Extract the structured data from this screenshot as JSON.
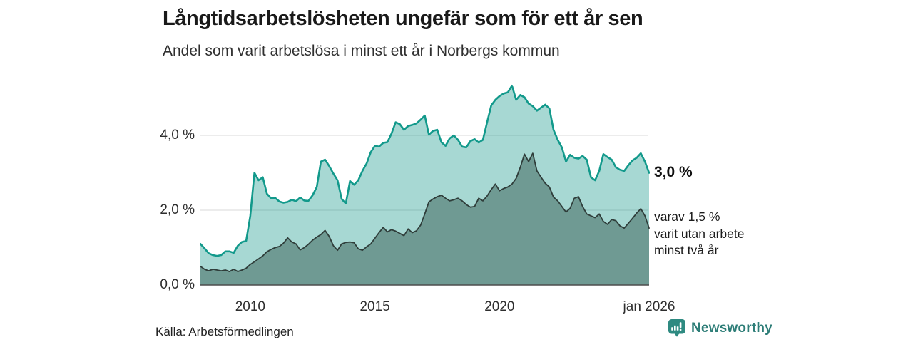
{
  "header": {
    "title": "Långtidsarbetslösheten ungefär som för ett år sen",
    "subtitle": "Andel som varit arbetslösa i minst ett år i Norbergs kommun"
  },
  "chart_data": {
    "type": "area",
    "title": "Långtidsarbetslösheten ungefär som för ett år sen",
    "subtitle": "Andel som varit arbetslösa i minst ett år i Norbergs kommun",
    "unit": "%",
    "x_start": "2008-01",
    "x_end": "2026-01",
    "x_step_months": 2,
    "ylim": [
      0,
      5.6
    ],
    "grid": "horizontal",
    "grid_color": "#d9d9d9",
    "axis_line_color": "#4d4d4d",
    "yticks": [
      {
        "value": 0,
        "label": "0,0 %"
      },
      {
        "value": 2,
        "label": "2,0 %"
      },
      {
        "value": 4,
        "label": "4,0 %"
      }
    ],
    "xticks": [
      {
        "year": 2010,
        "label": "2010"
      },
      {
        "year": 2015,
        "label": "2015"
      },
      {
        "year": 2020,
        "label": "2020"
      },
      {
        "year": 2026,
        "label": "jan 2026"
      }
    ],
    "series": [
      {
        "name": "Andel som varit arbetslösa i minst ett år",
        "stroke": "#12998b",
        "stroke_width": 2.6,
        "fill": "rgba(16,150,136,0.37)",
        "last_value": 3.0,
        "values": [
          1.1,
          0.98,
          0.85,
          0.8,
          0.78,
          0.8,
          0.9,
          0.9,
          0.86,
          1.05,
          1.15,
          1.18,
          1.85,
          3.0,
          2.8,
          2.88,
          2.44,
          2.32,
          2.33,
          2.23,
          2.2,
          2.22,
          2.28,
          2.24,
          2.34,
          2.26,
          2.25,
          2.4,
          2.62,
          3.3,
          3.35,
          3.18,
          2.98,
          2.8,
          2.3,
          2.18,
          2.78,
          2.68,
          2.8,
          3.05,
          3.25,
          3.55,
          3.72,
          3.7,
          3.8,
          3.82,
          4.05,
          4.35,
          4.3,
          4.15,
          4.25,
          4.28,
          4.32,
          4.42,
          4.53,
          4.02,
          4.12,
          4.15,
          3.82,
          3.72,
          3.92,
          4.0,
          3.88,
          3.7,
          3.68,
          3.85,
          3.9,
          3.81,
          3.88,
          4.35,
          4.8,
          4.95,
          5.05,
          5.12,
          5.15,
          5.33,
          4.95,
          5.08,
          5.02,
          4.85,
          4.78,
          4.66,
          4.74,
          4.82,
          4.72,
          4.15,
          3.88,
          3.68,
          3.3,
          3.48,
          3.4,
          3.38,
          3.45,
          3.35,
          2.88,
          2.8,
          3.05,
          3.5,
          3.42,
          3.35,
          3.15,
          3.08,
          3.05,
          3.2,
          3.33,
          3.4,
          3.52,
          3.3,
          3.0
        ]
      },
      {
        "name": "varav utan arbete minst två år",
        "stroke": "#2f3d3a",
        "stroke_width": 1.8,
        "fill": "#6f9a93",
        "last_value": 1.5,
        "values": [
          0.5,
          0.42,
          0.38,
          0.42,
          0.4,
          0.38,
          0.4,
          0.36,
          0.42,
          0.36,
          0.4,
          0.45,
          0.55,
          0.62,
          0.7,
          0.78,
          0.89,
          0.95,
          1.0,
          1.03,
          1.12,
          1.26,
          1.15,
          1.1,
          0.94,
          1.0,
          1.09,
          1.2,
          1.28,
          1.35,
          1.46,
          1.3,
          1.05,
          0.93,
          1.1,
          1.14,
          1.15,
          1.13,
          0.97,
          0.93,
          1.02,
          1.1,
          1.25,
          1.4,
          1.54,
          1.42,
          1.48,
          1.44,
          1.38,
          1.32,
          1.5,
          1.4,
          1.45,
          1.6,
          1.9,
          2.22,
          2.3,
          2.36,
          2.4,
          2.32,
          2.25,
          2.28,
          2.32,
          2.25,
          2.15,
          2.08,
          2.1,
          2.32,
          2.25,
          2.38,
          2.55,
          2.7,
          2.52,
          2.58,
          2.62,
          2.7,
          2.85,
          3.15,
          3.5,
          3.3,
          3.52,
          3.05,
          2.88,
          2.72,
          2.62,
          2.35,
          2.25,
          2.1,
          1.95,
          2.05,
          2.32,
          2.36,
          2.1,
          1.9,
          1.85,
          1.8,
          1.9,
          1.7,
          1.62,
          1.75,
          1.72,
          1.58,
          1.52,
          1.65,
          1.78,
          1.92,
          2.04,
          1.85,
          1.52
        ]
      }
    ]
  },
  "annotations": {
    "latest_total": "3,0 %",
    "latest_sub_lines": [
      "varav 1,5 %",
      "varit utan arbete",
      "minst två år"
    ]
  },
  "footer": {
    "source": "Källa: Arbetsförmedlingen",
    "brand": "Newsworthy",
    "brand_color": "#2d7d77",
    "logo_color": "#2e8a81"
  }
}
